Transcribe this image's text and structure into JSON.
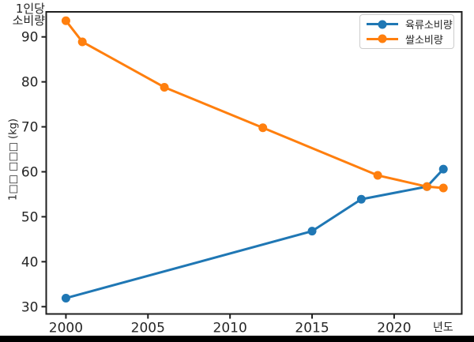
{
  "figure": {
    "corner_label_line1": "1인당",
    "corner_label_line2": "소비량",
    "ylabel_rendered": "1□□ □□□ (kg)",
    "xlabel": "년도"
  },
  "colors": {
    "series_meat": "#1f77b4",
    "series_rice": "#ff7f0e",
    "text": "#262626",
    "spine": "#1f1f1f",
    "legend_border": "#cccccc",
    "bottom_bar": "#000000",
    "background": "#ffffff"
  },
  "chart_data": {
    "type": "line",
    "title": "",
    "xlabel": "년도",
    "ylabel": "1인당 소비량 (kg)",
    "ylabel_rendered_as": "1□□ □□□ (kg)",
    "grid": false,
    "legend_position": "upper right",
    "x_ticks": [
      2000,
      2005,
      2010,
      2015,
      2020
    ],
    "y_ticks": [
      30,
      40,
      50,
      60,
      70,
      80,
      90
    ],
    "xlim": [
      1998.8,
      2024.12
    ],
    "ylim": [
      28.38,
      95.57
    ],
    "series": [
      {
        "name": "육류소비량",
        "color": "#1f77b4",
        "marker": "circle",
        "x": [
          2000,
          2015,
          2018,
          2022,
          2023
        ],
        "values": [
          31.9,
          46.8,
          53.9,
          56.7,
          60.6
        ]
      },
      {
        "name": "쌀소비량",
        "color": "#ff7f0e",
        "marker": "circle",
        "x": [
          2000,
          2001,
          2006,
          2012,
          2019,
          2022,
          2023
        ],
        "values": [
          93.6,
          88.9,
          78.8,
          69.8,
          59.2,
          56.7,
          56.4
        ]
      }
    ]
  }
}
